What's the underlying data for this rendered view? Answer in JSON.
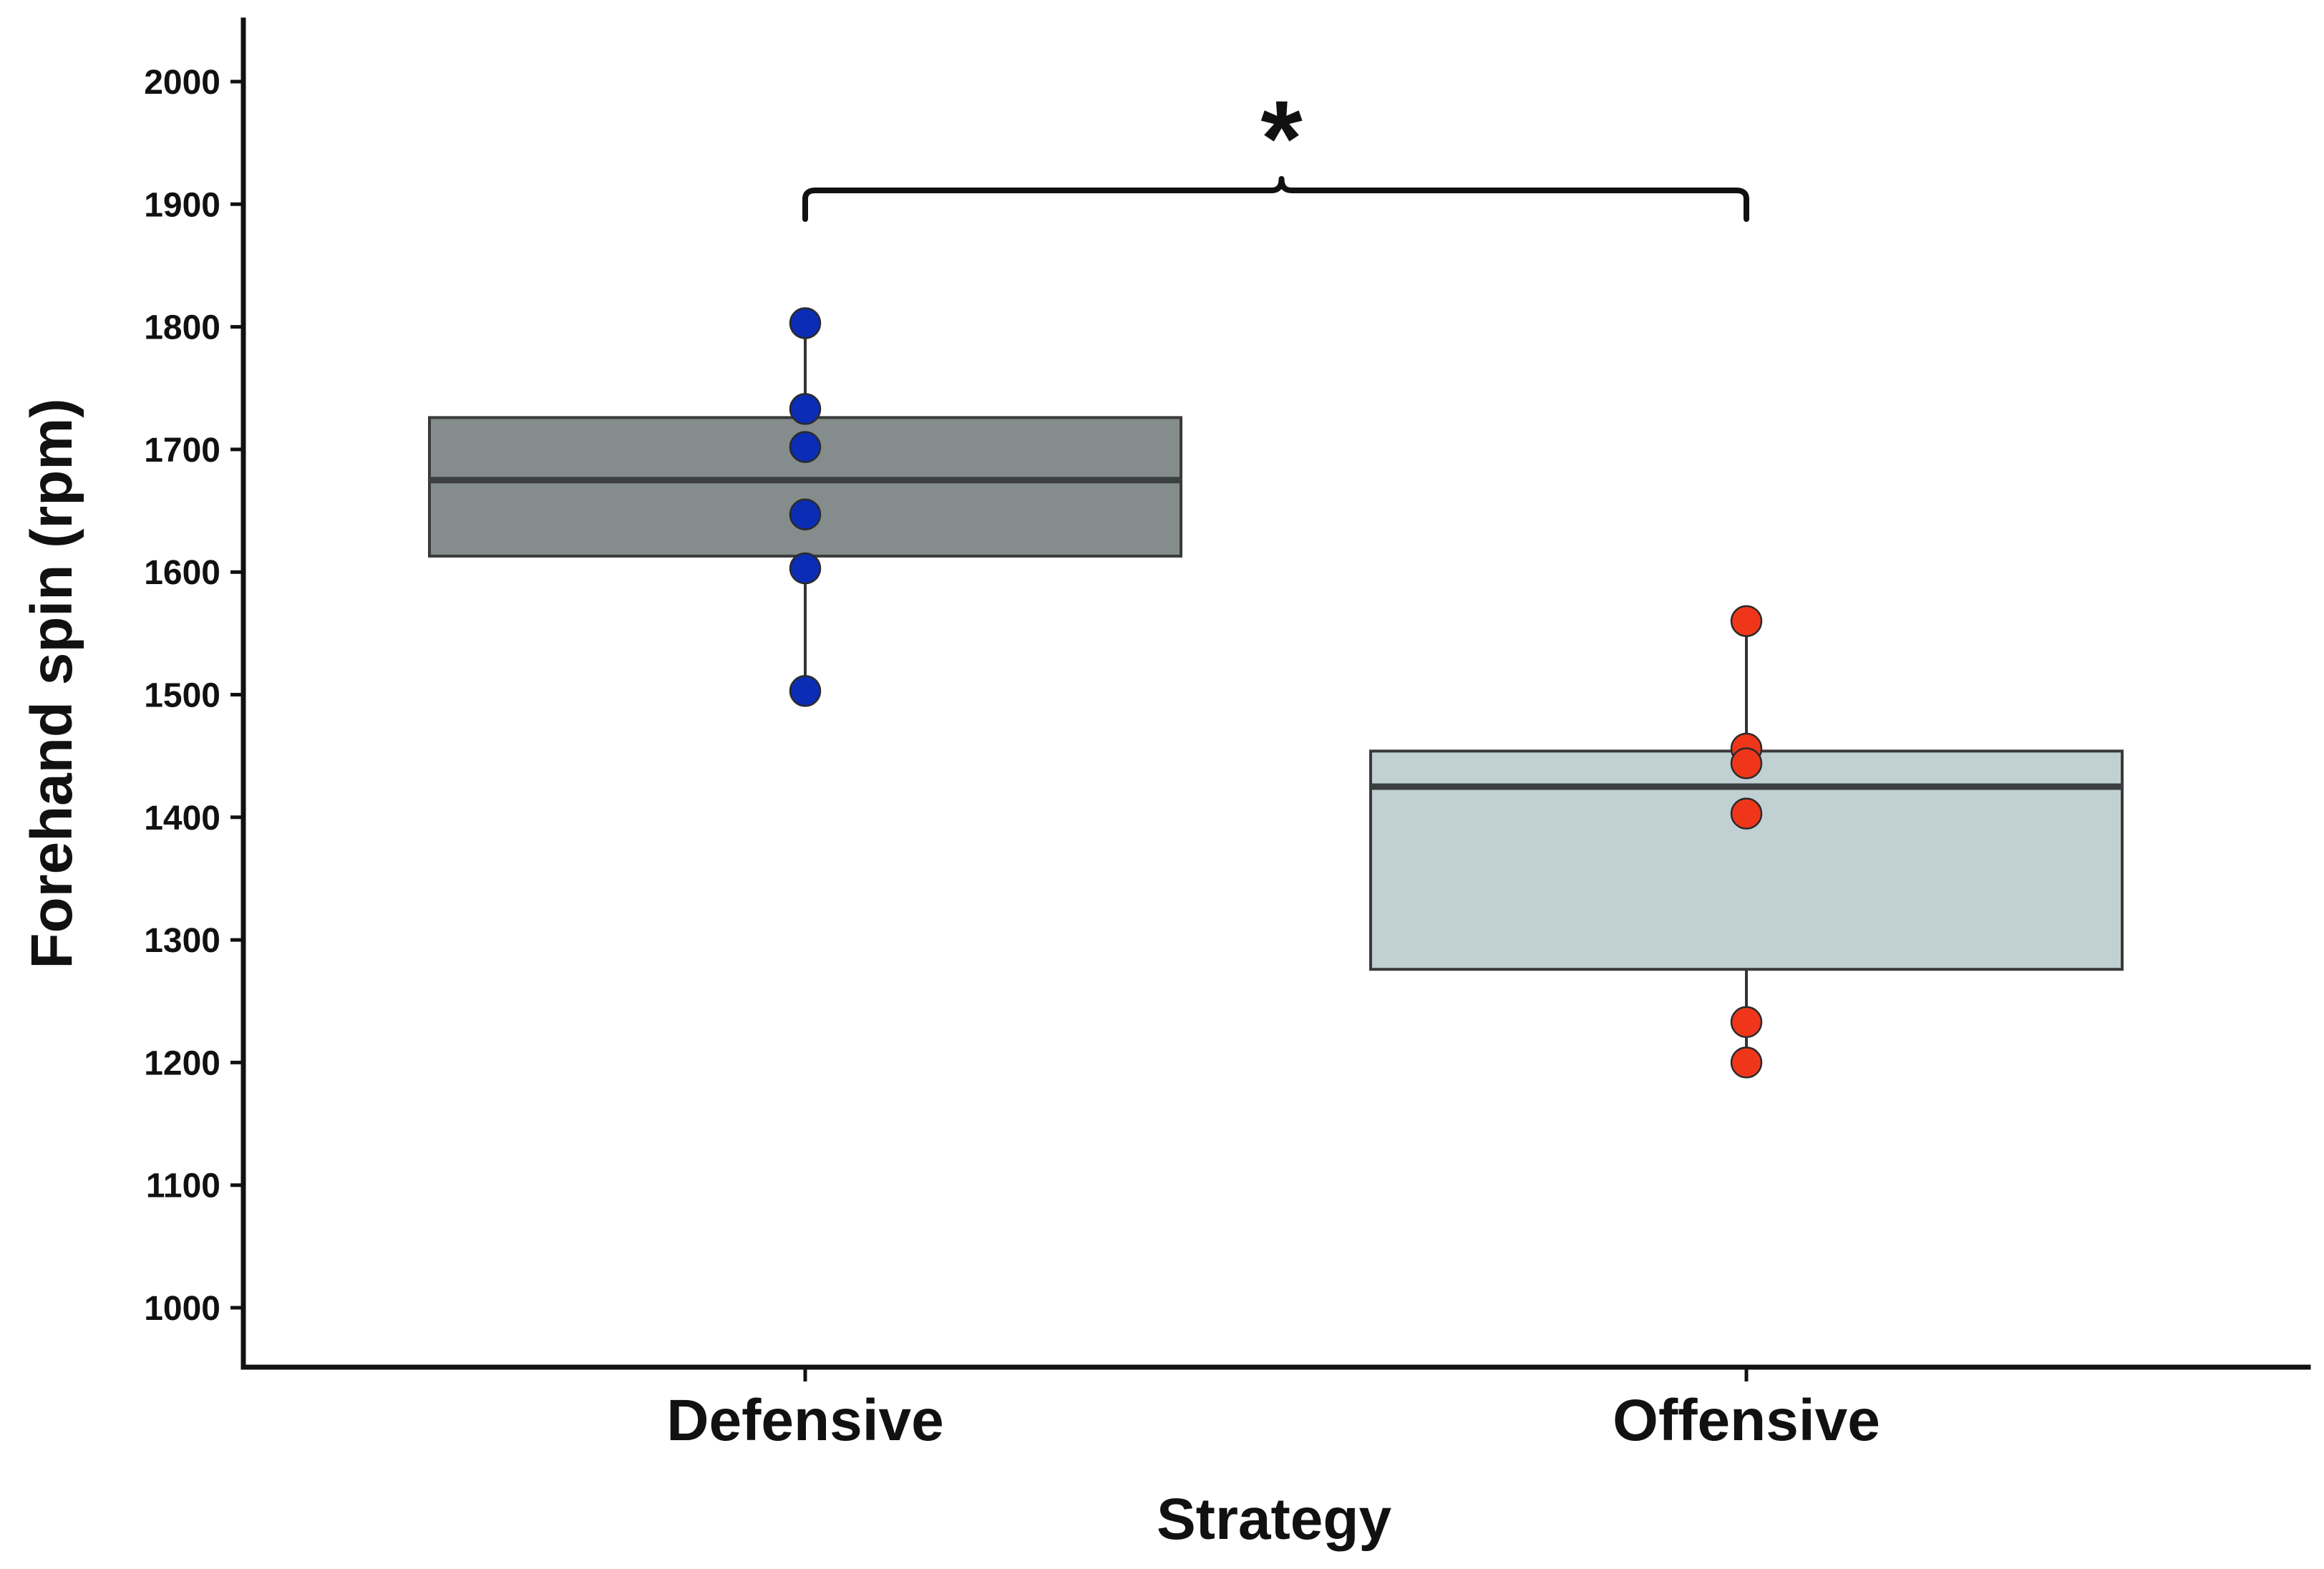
{
  "chart_data": {
    "type": "box",
    "xlabel": "Strategy",
    "ylabel": "Forehand spin (rpm)",
    "ylim": [
      950,
      2060
    ],
    "yticks": [
      1000,
      1100,
      1200,
      1300,
      1400,
      1500,
      1600,
      1700,
      1800,
      1900,
      2000
    ],
    "grid": false,
    "legend": "none",
    "categories": [
      "Defensive",
      "Offensive"
    ],
    "series": [
      {
        "name": "Defensive",
        "box": {
          "q1": 1613,
          "median": 1675,
          "q3": 1726,
          "whisker_low": 1503,
          "whisker_high": 1803
        },
        "points": [
          1803,
          1733,
          1702,
          1647,
          1603,
          1503
        ],
        "box_color": "#848c8c",
        "point_color": "#0b2db5"
      },
      {
        "name": "Offensive",
        "box": {
          "q1": 1276,
          "median": 1425,
          "q3": 1454,
          "whisker_low": 1200,
          "whisker_high": 1560
        },
        "points": [
          1560,
          1456,
          1444,
          1403,
          1233,
          1200
        ],
        "box_color": "#c1d0d2",
        "point_color": "#f0361a"
      }
    ],
    "annotations": [
      {
        "type": "bracket",
        "from": "Defensive",
        "to": "Offensive",
        "y": 1905,
        "label": "*"
      }
    ]
  }
}
